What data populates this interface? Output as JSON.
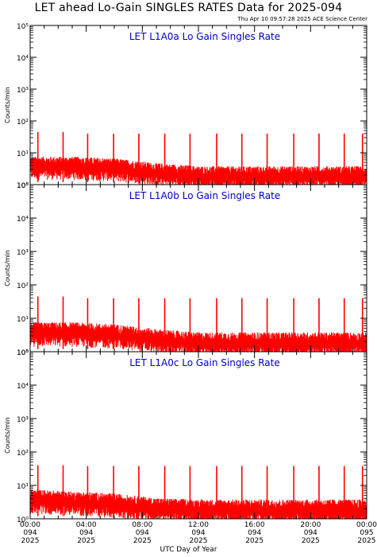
{
  "title": "LET ahead Lo-Gain SINGLES RATES Data for 2025-094",
  "timestamp": "Thu Apr 10 09:57:28 2025 ACE Science Center",
  "x_axis_label": "UTC Day of Year",
  "colors": {
    "data": "#ff0000",
    "panel_title": "#0000cc",
    "frame": "#000000"
  },
  "chart_data": [
    {
      "type": "line",
      "title": "LET L1A0a Lo Gain Singles Rate",
      "ylabel": "Counts/min",
      "yscale": "log",
      "ylim": [
        1,
        100000
      ],
      "ytick_labels": [
        "10⁰",
        "10¹",
        "10²",
        "10³",
        "10⁴",
        "10⁵"
      ],
      "xlim": [
        0,
        24
      ],
      "xunit": "hours of 2025-094 (UTC)",
      "grid": false,
      "spike_hours": [
        0.55,
        2.35,
        4.1,
        5.95,
        7.75,
        9.6,
        11.4,
        13.3,
        15.1,
        16.9,
        18.8,
        20.6,
        22.4,
        23.7
      ],
      "spike_values": [
        45,
        45,
        40,
        40,
        40,
        40,
        40,
        40,
        40,
        40,
        40,
        40,
        40,
        40
      ],
      "baseline_profile": [
        {
          "x": 0,
          "y": 4
        },
        {
          "x": 3,
          "y": 4
        },
        {
          "x": 6,
          "y": 3.5
        },
        {
          "x": 9,
          "y": 2.5
        },
        {
          "x": 12,
          "y": 2
        },
        {
          "x": 15,
          "y": 2
        },
        {
          "x": 18,
          "y": 2
        },
        {
          "x": 21,
          "y": 2
        },
        {
          "x": 24,
          "y": 2
        }
      ]
    },
    {
      "type": "line",
      "title": "LET L1A0b Lo Gain Singles Rate",
      "ylabel": "Counts/min",
      "yscale": "log",
      "ylim": [
        1,
        100000
      ],
      "ytick_labels": [
        "10⁰",
        "10¹",
        "10²",
        "10³",
        "10⁴",
        "10⁵"
      ],
      "xlim": [
        0,
        24
      ],
      "xunit": "hours of 2025-094 (UTC)",
      "grid": false,
      "spike_hours": [
        0.55,
        2.35,
        4.1,
        5.95,
        7.75,
        9.6,
        11.4,
        13.3,
        15.1,
        16.9,
        18.8,
        20.6,
        22.4,
        23.7
      ],
      "spike_values": [
        45,
        45,
        40,
        40,
        40,
        40,
        40,
        40,
        40,
        40,
        40,
        40,
        40,
        40
      ],
      "baseline_profile": [
        {
          "x": 0,
          "y": 4
        },
        {
          "x": 3,
          "y": 4
        },
        {
          "x": 6,
          "y": 3.5
        },
        {
          "x": 9,
          "y": 2.5
        },
        {
          "x": 12,
          "y": 2
        },
        {
          "x": 15,
          "y": 2
        },
        {
          "x": 18,
          "y": 2
        },
        {
          "x": 21,
          "y": 2
        },
        {
          "x": 24,
          "y": 2
        }
      ]
    },
    {
      "type": "line",
      "title": "LET L1A0c Lo Gain Singles Rate",
      "ylabel": "Counts/min",
      "yscale": "log",
      "ylim": [
        1,
        100000
      ],
      "ytick_labels": [
        "10⁰",
        "10¹",
        "10²",
        "10³",
        "10⁴",
        "10⁵"
      ],
      "xlim": [
        0,
        24
      ],
      "xunit": "hours of 2025-094 (UTC)",
      "grid": false,
      "spike_hours": [
        0.55,
        2.35,
        4.1,
        5.95,
        7.75,
        9.6,
        11.4,
        13.3,
        15.1,
        16.9,
        18.8,
        20.6,
        22.4,
        23.7
      ],
      "spike_values": [
        40,
        40,
        38,
        38,
        38,
        38,
        38,
        38,
        38,
        38,
        38,
        38,
        38,
        38
      ],
      "baseline_profile": [
        {
          "x": 0,
          "y": 4
        },
        {
          "x": 3,
          "y": 3.5
        },
        {
          "x": 6,
          "y": 3
        },
        {
          "x": 9,
          "y": 2.2
        },
        {
          "x": 12,
          "y": 2
        },
        {
          "x": 15,
          "y": 2
        },
        {
          "x": 18,
          "y": 2
        },
        {
          "x": 21,
          "y": 2
        },
        {
          "x": 24,
          "y": 2
        }
      ]
    }
  ],
  "x_ticks": [
    {
      "hour": 0,
      "lines": [
        "00:00",
        "094",
        "2025"
      ]
    },
    {
      "hour": 4,
      "lines": [
        "04:00",
        "094",
        "2025"
      ]
    },
    {
      "hour": 8,
      "lines": [
        "08:00",
        "094",
        "2025"
      ]
    },
    {
      "hour": 12,
      "lines": [
        "12:00",
        "094",
        "2025"
      ]
    },
    {
      "hour": 16,
      "lines": [
        "16:00",
        "094",
        "2025"
      ]
    },
    {
      "hour": 20,
      "lines": [
        "20:00",
        "094",
        "2025"
      ]
    },
    {
      "hour": 24,
      "lines": [
        "00:00",
        "095",
        "2025"
      ]
    }
  ]
}
